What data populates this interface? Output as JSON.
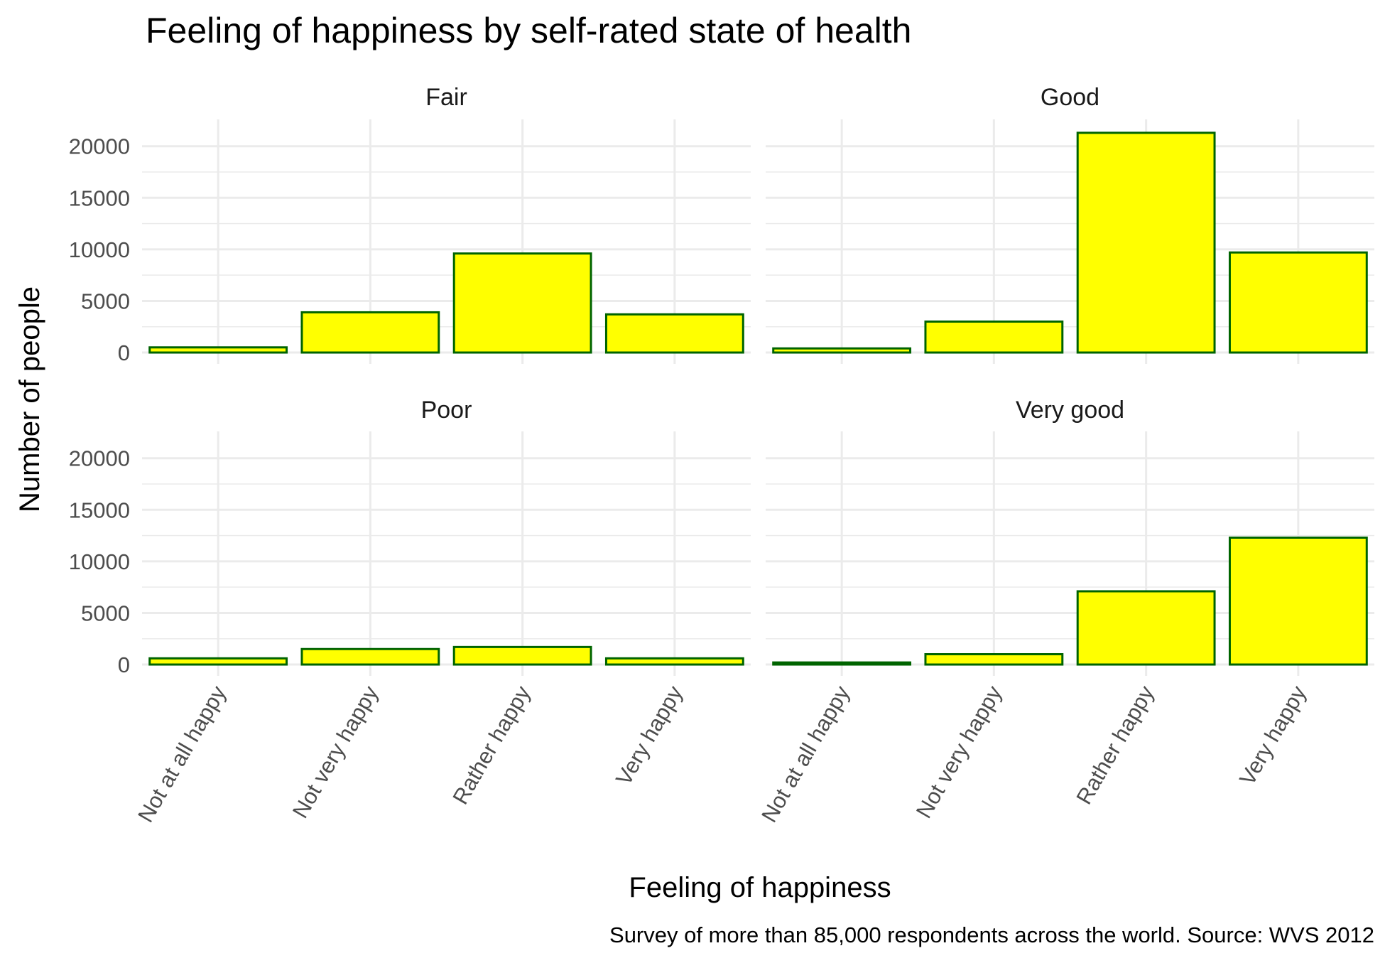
{
  "chart_data": {
    "type": "bar",
    "title": "Feeling of happiness by self-rated state of health",
    "xlabel": "Feeling of happiness",
    "ylabel": "Number of people",
    "caption": "Survey of more than 85,000 respondents across the world. Source: WVS 2012",
    "categories": [
      "Not at all happy",
      "Not very happy",
      "Rather happy",
      "Very happy"
    ],
    "yticks": [
      "0",
      "5000",
      "10000",
      "15000",
      "20000"
    ],
    "ylim": [
      -1100,
      22600
    ],
    "grid": true,
    "legend": "none",
    "colors": {
      "fill": "#FFFF00",
      "outline": "#006400",
      "grid": "#EBEBEB"
    },
    "panels": [
      {
        "name": "Fair",
        "values": [
          500,
          3900,
          9600,
          3700
        ]
      },
      {
        "name": "Good",
        "values": [
          400,
          3000,
          21300,
          9700
        ]
      },
      {
        "name": "Poor",
        "values": [
          600,
          1500,
          1700,
          600
        ]
      },
      {
        "name": "Very good",
        "values": [
          200,
          1000,
          7100,
          12300
        ]
      }
    ]
  }
}
